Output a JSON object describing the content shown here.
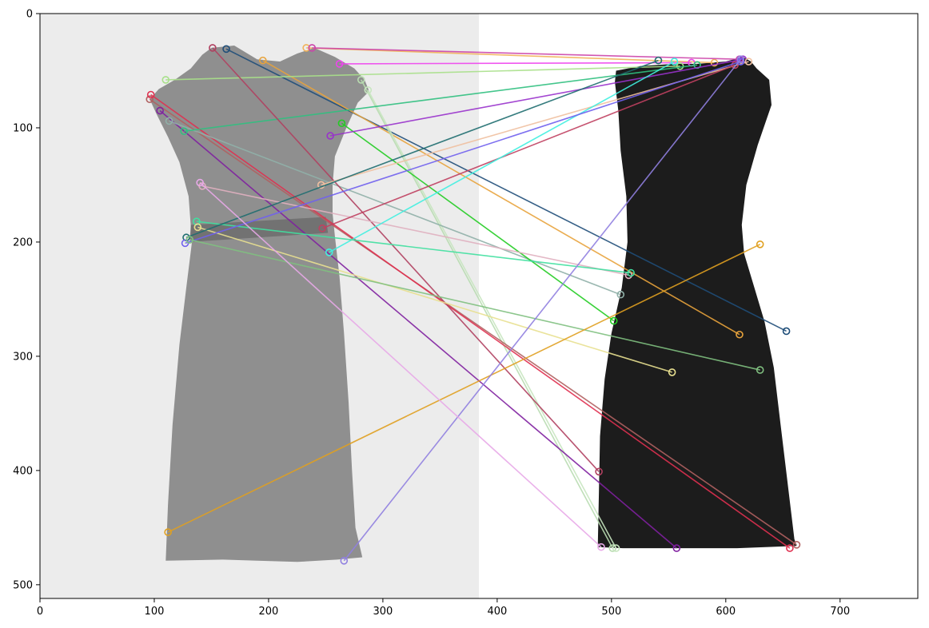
{
  "chart_data": {
    "type": "scatter",
    "title": "",
    "xlabel": "",
    "ylabel": "",
    "xlim": [
      0,
      768
    ],
    "ylim": [
      512,
      0
    ],
    "grid": false,
    "x_ticks": [
      "0",
      "100",
      "200",
      "300",
      "400",
      "500",
      "600",
      "700"
    ],
    "y_ticks": [
      "0",
      "100",
      "200",
      "300",
      "400",
      "500"
    ],
    "panels": [
      {
        "name": "left-dress",
        "x_range": [
          0,
          384
        ],
        "background": "#ececec",
        "dress_color": "#8a8a8a"
      },
      {
        "name": "right-dress",
        "x_range": [
          384,
          768
        ],
        "background": "#ffffff",
        "dress_color": "#1c1c1c"
      }
    ],
    "matches": [
      {
        "from": [
          163,
          31
        ],
        "to": [
          653,
          278
        ],
        "color": "#1f4e79"
      },
      {
        "from": [
          195,
          41
        ],
        "to": [
          612,
          281
        ],
        "color": "#e8a33c"
      },
      {
        "from": [
          233,
          30
        ],
        "to": [
          590,
          43
        ],
        "color": "#f2b35a"
      },
      {
        "from": [
          238,
          30
        ],
        "to": [
          612,
          40
        ],
        "color": "#cc44aa"
      },
      {
        "from": [
          262,
          44
        ],
        "to": [
          570,
          43
        ],
        "color": "#ee44ee"
      },
      {
        "from": [
          110,
          58
        ],
        "to": [
          560,
          46
        ],
        "color": "#a8e08a"
      },
      {
        "from": [
          281,
          58
        ],
        "to": [
          501,
          468
        ],
        "color": "#b8dcb0"
      },
      {
        "from": [
          287,
          67
        ],
        "to": [
          504,
          468
        ],
        "color": "#c8e6c0"
      },
      {
        "from": [
          96,
          75
        ],
        "to": [
          662,
          465
        ],
        "color": "#b06060"
      },
      {
        "from": [
          97,
          71
        ],
        "to": [
          656,
          468
        ],
        "color": "#e03050"
      },
      {
        "from": [
          105,
          85
        ],
        "to": [
          557,
          468
        ],
        "color": "#8020a0"
      },
      {
        "from": [
          113,
          94
        ],
        "to": [
          508,
          246
        ],
        "color": "#90b0a8"
      },
      {
        "from": [
          126,
          103
        ],
        "to": [
          575,
          45
        ],
        "color": "#30c080"
      },
      {
        "from": [
          151,
          30
        ],
        "to": [
          489,
          401
        ],
        "color": "#b04060"
      },
      {
        "from": [
          264,
          96
        ],
        "to": [
          502,
          269
        ],
        "color": "#22cc22"
      },
      {
        "from": [
          254,
          107
        ],
        "to": [
          615,
          40
        ],
        "color": "#9932cc"
      },
      {
        "from": [
          142,
          151
        ],
        "to": [
          515,
          229
        ],
        "color": "#e0b0c0"
      },
      {
        "from": [
          246,
          150
        ],
        "to": [
          620,
          42
        ],
        "color": "#f0c0a0"
      },
      {
        "from": [
          247,
          188
        ],
        "to": [
          608,
          45
        ],
        "color": "#c04060"
      },
      {
        "from": [
          253,
          209
        ],
        "to": [
          555,
          42
        ],
        "color": "#40f0e0"
      },
      {
        "from": [
          137,
          182
        ],
        "to": [
          517,
          227
        ],
        "color": "#40e0a0"
      },
      {
        "from": [
          138,
          187
        ],
        "to": [
          553,
          314
        ],
        "color": "#e8e090"
      },
      {
        "from": [
          128,
          196
        ],
        "to": [
          541,
          41
        ],
        "color": "#1f6e70"
      },
      {
        "from": [
          127,
          201
        ],
        "to": [
          613,
          42
        ],
        "color": "#7060ee"
      },
      {
        "from": [
          131,
          198
        ],
        "to": [
          630,
          312
        ],
        "color": "#80c080"
      },
      {
        "from": [
          112,
          454
        ],
        "to": [
          630,
          202
        ],
        "color": "#e0a020"
      },
      {
        "from": [
          266,
          479
        ],
        "to": [
          613,
          40
        ],
        "color": "#9080e0"
      },
      {
        "from": [
          140,
          148
        ],
        "to": [
          491,
          467
        ],
        "color": "#e8a8e8"
      }
    ]
  }
}
